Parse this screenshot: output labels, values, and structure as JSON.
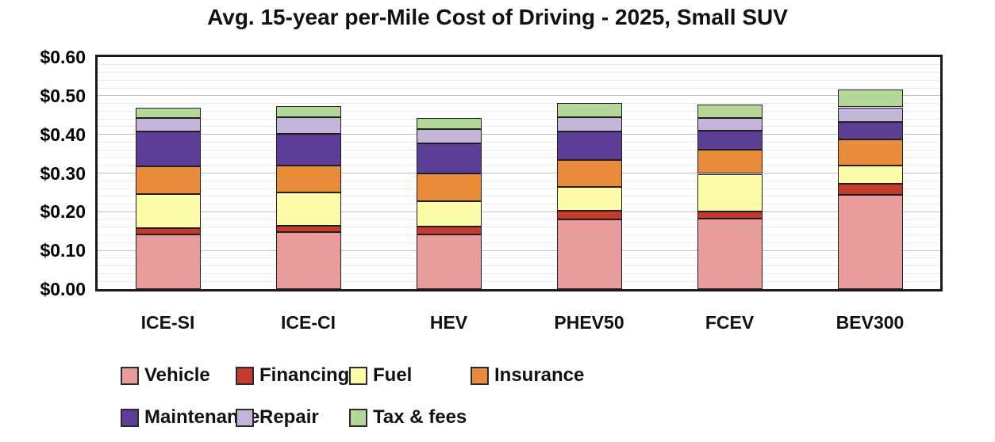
{
  "chart_data": {
    "type": "bar",
    "stacked": true,
    "title": "Avg. 15-year per-Mile Cost of Driving - 2025, Small SUV",
    "categories": [
      "ICE-SI",
      "ICE-CI",
      "HEV",
      "PHEV50",
      "FCEV",
      "BEV300"
    ],
    "series": [
      {
        "name": "Vehicle",
        "color": "#E99C9C",
        "values": [
          0.141,
          0.148,
          0.141,
          0.181,
          0.182,
          0.243
        ]
      },
      {
        "name": "Financing",
        "color": "#C43B2E",
        "values": [
          0.016,
          0.016,
          0.02,
          0.021,
          0.019,
          0.029
        ]
      },
      {
        "name": "Fuel",
        "color": "#FDFDA9",
        "values": [
          0.089,
          0.086,
          0.066,
          0.063,
          0.097,
          0.047
        ]
      },
      {
        "name": "Insurance",
        "color": "#E88C3C",
        "values": [
          0.071,
          0.07,
          0.072,
          0.069,
          0.063,
          0.069
        ]
      },
      {
        "name": "Maintenance",
        "color": "#5C3E96",
        "values": [
          0.09,
          0.082,
          0.077,
          0.074,
          0.049,
          0.045
        ]
      },
      {
        "name": "Repair",
        "color": "#C4B6D8",
        "values": [
          0.036,
          0.042,
          0.038,
          0.037,
          0.032,
          0.037
        ]
      },
      {
        "name": "Tax & fees",
        "color": "#B4D79A",
        "values": [
          0.027,
          0.029,
          0.029,
          0.036,
          0.035,
          0.046
        ]
      }
    ],
    "stack_totals": [
      0.47,
      0.473,
      0.443,
      0.481,
      0.477,
      0.516
    ],
    "xlabel": "",
    "ylabel": "",
    "ylim": [
      0,
      0.6
    ],
    "y_major_unit": 0.1,
    "y_minor_unit": 0.02,
    "y_tick_labels": [
      "$0.00",
      "$0.10",
      "$0.20",
      "$0.30",
      "$0.40",
      "$0.50",
      "$0.60"
    ],
    "grid": "horizontal major and minor gridlines",
    "legend_position": "bottom",
    "legend_rows": [
      [
        "Vehicle",
        "Financing",
        "Fuel",
        "Insurance"
      ],
      [
        "Maintenance",
        "Repair",
        "Tax & fees"
      ]
    ],
    "axis_colors": {
      "plot_border": "#1a1a1a",
      "major_grid": "#c0c0c0",
      "minor_grid": "#ebebeb",
      "segment_border": "#1f1f1f",
      "text": "#111111"
    }
  }
}
